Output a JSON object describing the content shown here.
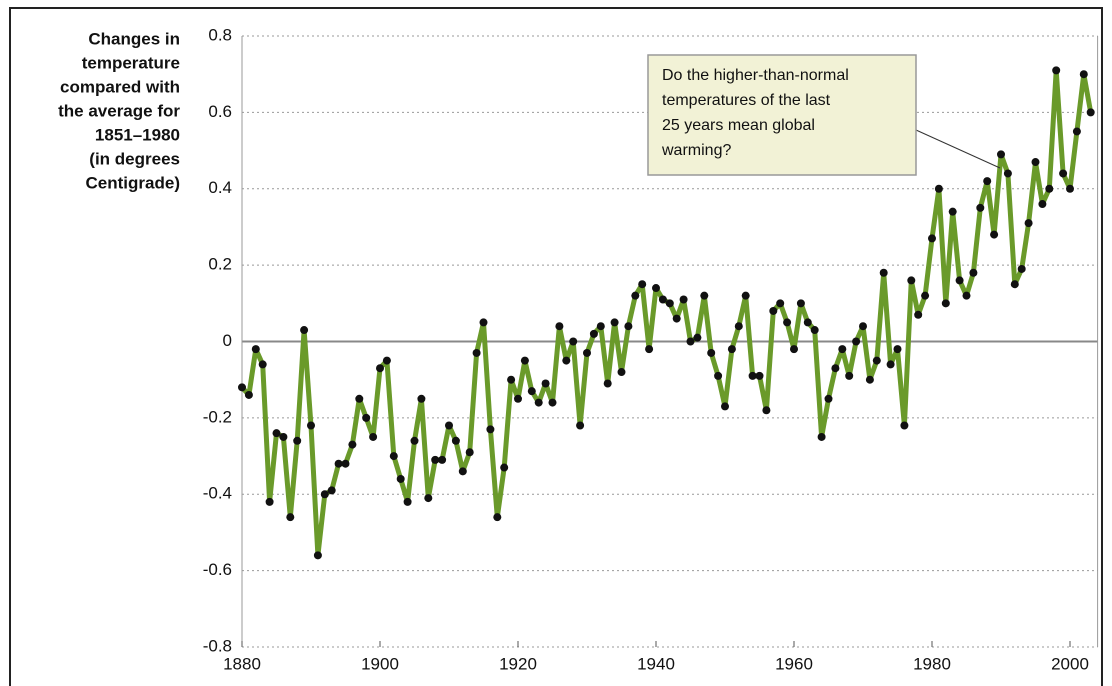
{
  "chart_data": {
    "type": "line",
    "ylabel": [
      "Changes in",
      "temperature",
      "compared with",
      "the average for",
      "1851–1980",
      "(in degrees",
      "Centigrade)"
    ],
    "annotation": [
      "Do the higher-than-normal",
      "temperatures of the last",
      "25 years mean global",
      "warming?"
    ],
    "x": [
      1880,
      1881,
      1882,
      1883,
      1884,
      1885,
      1886,
      1887,
      1888,
      1889,
      1890,
      1891,
      1892,
      1893,
      1894,
      1895,
      1896,
      1897,
      1898,
      1899,
      1900,
      1901,
      1902,
      1903,
      1904,
      1905,
      1906,
      1907,
      1908,
      1909,
      1910,
      1911,
      1912,
      1913,
      1914,
      1915,
      1916,
      1917,
      1918,
      1919,
      1920,
      1921,
      1922,
      1923,
      1924,
      1925,
      1926,
      1927,
      1928,
      1929,
      1930,
      1931,
      1932,
      1933,
      1934,
      1935,
      1936,
      1937,
      1938,
      1939,
      1940,
      1941,
      1942,
      1943,
      1944,
      1945,
      1946,
      1947,
      1948,
      1949,
      1950,
      1951,
      1952,
      1953,
      1954,
      1955,
      1956,
      1957,
      1958,
      1959,
      1960,
      1961,
      1962,
      1963,
      1964,
      1965,
      1966,
      1967,
      1968,
      1969,
      1970,
      1971,
      1972,
      1973,
      1974,
      1975,
      1976,
      1977,
      1978,
      1979,
      1980,
      1981,
      1982,
      1983,
      1984,
      1985,
      1986,
      1987,
      1988,
      1989,
      1990,
      1991,
      1992,
      1993,
      1994,
      1995,
      1996,
      1997,
      1998,
      1999,
      2000,
      2001,
      2002,
      2003
    ],
    "series": [
      {
        "color": "#6a9a2a",
        "values": [
          -0.12,
          -0.14,
          -0.02,
          -0.06,
          -0.42,
          -0.24,
          -0.25,
          -0.46,
          -0.26,
          0.03,
          -0.22,
          -0.56,
          -0.4,
          -0.39,
          -0.32,
          -0.32,
          -0.27,
          -0.15,
          -0.2,
          -0.25,
          -0.07,
          -0.05,
          -0.3,
          -0.36,
          -0.42,
          -0.26,
          -0.15,
          -0.41,
          -0.31,
          -0.31,
          -0.22,
          -0.26,
          -0.34,
          -0.29,
          -0.03,
          0.05,
          -0.23,
          -0.46,
          -0.33,
          -0.1,
          -0.15,
          -0.05,
          -0.13,
          -0.16,
          -0.11,
          -0.16,
          0.04,
          -0.05,
          0.0,
          -0.22,
          -0.03,
          0.02,
          0.04,
          -0.11,
          0.05,
          -0.08,
          0.04,
          0.12,
          0.15,
          -0.02,
          0.14,
          0.11,
          0.1,
          0.06,
          0.11,
          0.0,
          0.01,
          0.12,
          -0.03,
          -0.09,
          -0.17,
          -0.02,
          0.04,
          0.12,
          -0.09,
          -0.09,
          -0.18,
          0.08,
          0.1,
          0.05,
          -0.02,
          0.1,
          0.05,
          0.03,
          -0.25,
          -0.15,
          -0.07,
          -0.02,
          -0.09,
          0.0,
          0.04,
          -0.1,
          -0.05,
          0.18,
          -0.06,
          -0.02,
          -0.22,
          0.16,
          0.07,
          0.12,
          0.27,
          0.4,
          0.1,
          0.34,
          0.16,
          0.12,
          0.18,
          0.35,
          0.42,
          0.28,
          0.49,
          0.44,
          0.15,
          0.19,
          0.31,
          0.47,
          0.36,
          0.4,
          0.71,
          0.44,
          0.4,
          0.55,
          0.7,
          0.6
        ]
      }
    ],
    "xlim": [
      1880,
      2004
    ],
    "xticks": [
      1880,
      1900,
      1920,
      1940,
      1960,
      1980,
      2000
    ],
    "ylim": [
      -0.8,
      0.8
    ],
    "yticks": [
      0.8,
      0.6,
      0.4,
      0.2,
      0,
      -0.2,
      -0.4,
      -0.6,
      -0.8
    ],
    "grid": true
  }
}
